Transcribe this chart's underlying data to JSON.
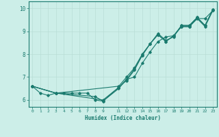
{
  "xlabel": "Humidex (Indice chaleur)",
  "bg_color": "#cceee8",
  "line_color": "#1a7a6e",
  "grid_color": "#b8ddd6",
  "xlim": [
    -0.5,
    23.5
  ],
  "ylim": [
    5.7,
    10.3
  ],
  "yticks": [
    6,
    7,
    8,
    9,
    10
  ],
  "xticks": [
    0,
    1,
    2,
    3,
    4,
    5,
    6,
    7,
    8,
    9,
    11,
    12,
    13,
    14,
    15,
    16,
    17,
    18,
    19,
    20,
    21,
    22,
    23
  ],
  "line1_x": [
    0,
    1,
    2,
    3,
    4,
    5,
    6,
    7,
    8,
    9,
    11,
    12,
    13,
    14,
    15,
    16,
    17,
    18,
    19,
    20,
    21,
    22,
    23
  ],
  "line1_y": [
    6.6,
    6.3,
    6.2,
    6.3,
    6.3,
    6.3,
    6.3,
    6.3,
    6.0,
    5.95,
    6.55,
    6.9,
    7.35,
    7.95,
    8.45,
    8.85,
    8.55,
    8.8,
    9.25,
    9.25,
    9.6,
    9.25,
    9.95
  ],
  "line2_x": [
    0,
    3,
    11,
    12,
    13,
    14,
    15,
    16,
    17,
    18,
    19,
    20,
    21,
    22,
    23
  ],
  "line2_y": [
    6.6,
    6.3,
    6.6,
    7.0,
    7.4,
    8.0,
    8.45,
    8.9,
    8.6,
    8.75,
    9.25,
    9.25,
    9.6,
    9.25,
    9.95
  ],
  "line3_x": [
    0,
    3,
    9,
    11,
    12,
    13,
    14,
    15,
    16,
    17,
    18,
    19,
    20,
    21,
    22,
    23
  ],
  "line3_y": [
    6.6,
    6.3,
    6.0,
    6.55,
    6.85,
    7.3,
    7.95,
    8.45,
    8.85,
    8.55,
    8.8,
    9.2,
    9.2,
    9.55,
    9.2,
    9.9
  ],
  "line4_x": [
    0,
    3,
    8,
    9,
    11,
    12,
    13,
    14,
    15,
    16,
    17,
    18,
    19,
    20,
    21,
    22,
    23
  ],
  "line4_y": [
    6.6,
    6.3,
    6.15,
    5.95,
    6.5,
    6.9,
    7.0,
    7.6,
    8.1,
    8.55,
    8.75,
    8.8,
    9.2,
    9.2,
    9.55,
    9.55,
    9.9
  ]
}
